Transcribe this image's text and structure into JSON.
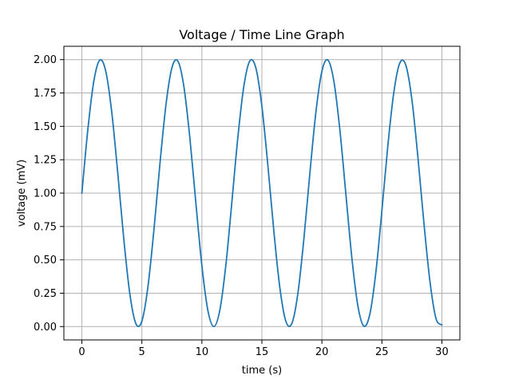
{
  "chart_data": {
    "type": "line",
    "title": "Voltage / Time Line Graph",
    "xlabel": "time (s)",
    "ylabel": "voltage (mV)",
    "xlim": [
      -1.5,
      31.5
    ],
    "ylim": [
      -0.1,
      2.1
    ],
    "x_ticks": [
      0,
      5,
      10,
      15,
      20,
      25,
      30
    ],
    "x_tick_labels": [
      "0",
      "5",
      "10",
      "15",
      "20",
      "25",
      "30"
    ],
    "y_ticks": [
      0,
      0.25,
      0.5,
      0.75,
      1.0,
      1.25,
      1.5,
      1.75,
      2.0
    ],
    "y_tick_labels": [
      "0.00",
      "0.25",
      "0.50",
      "0.75",
      "1.00",
      "1.25",
      "1.50",
      "1.75",
      "2.00"
    ],
    "grid": true,
    "line_color": "#1f77b4",
    "grid_color": "#b0b0b0",
    "series": [
      {
        "x": [
          0,
          0.5,
          1.0,
          1.5,
          2.0,
          2.5,
          3.0,
          3.5,
          4.0,
          4.5,
          5.0,
          5.5,
          6.0,
          6.5,
          7.0,
          7.5,
          8.0,
          8.5,
          9.0,
          9.5,
          10.0,
          10.5,
          11.0,
          11.5,
          12.0,
          12.5,
          13.0,
          13.5,
          14.0,
          14.5,
          15.0,
          15.5,
          16.0,
          16.5,
          17.0,
          17.5,
          18.0,
          18.5,
          19.0,
          19.5,
          20.0,
          20.5,
          21.0,
          21.5,
          22.0,
          22.5,
          23.0,
          23.5,
          24.0,
          24.5,
          25.0,
          25.5,
          26.0,
          26.5,
          27.0,
          27.5,
          28.0,
          28.5,
          29.0,
          29.5,
          30.0
        ],
        "values": [
          1.0,
          1.479,
          1.841,
          1.997,
          1.909,
          1.598,
          1.141,
          0.649,
          0.243,
          0.022,
          0.041,
          0.295,
          0.721,
          1.215,
          1.657,
          1.938,
          1.989,
          1.798,
          1.412,
          0.925,
          0.456,
          0.121,
          0.0,
          0.125,
          0.463,
          0.934,
          1.42,
          1.803,
          1.991,
          1.937,
          1.65,
          1.206,
          0.712,
          0.289,
          0.039,
          0.024,
          0.249,
          0.658,
          1.15,
          1.606,
          1.913,
          1.997,
          1.837,
          1.472,
          0.991,
          0.512,
          0.154,
          0.003,
          0.095,
          0.409,
          0.868,
          1.359,
          1.759,
          1.976,
          1.956,
          1.7,
          1.27,
          0.777,
          0.342,
          0.063,
          0.012
        ]
      }
    ]
  }
}
